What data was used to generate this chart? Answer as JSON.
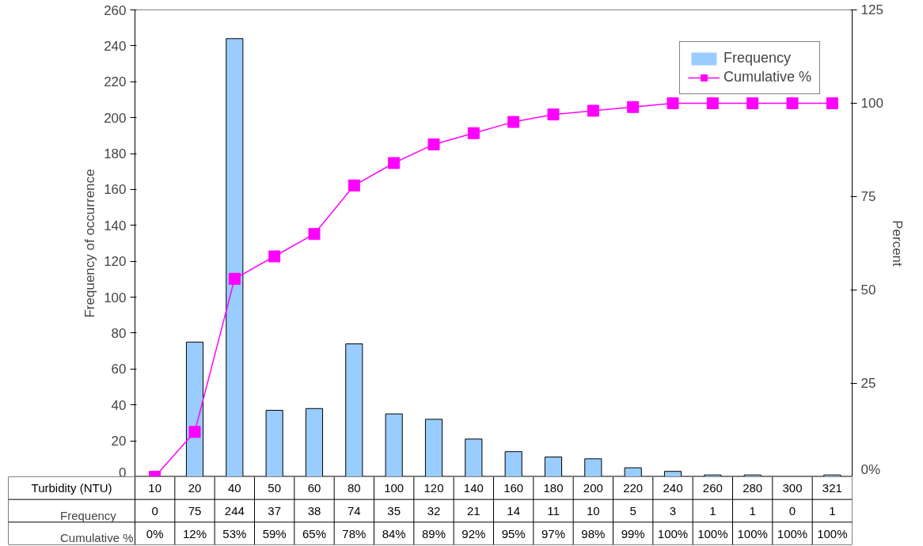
{
  "chart_data": {
    "type": "bar",
    "xlabel": "Turbidity (NTU)",
    "ylabel": "Frequency of occurrence",
    "y2label": "Percent",
    "categories": [
      "10",
      "20",
      "40",
      "50",
      "60",
      "80",
      "100",
      "120",
      "140",
      "160",
      "180",
      "200",
      "220",
      "240",
      "260",
      "280",
      "300",
      "321"
    ],
    "series": [
      {
        "name": "Frequency",
        "color": "#99ccff",
        "values": [
          0,
          75,
          244,
          37,
          38,
          74,
          35,
          32,
          21,
          14,
          11,
          10,
          5,
          3,
          1,
          1,
          0,
          1
        ],
        "value_labels": [
          "0",
          "75",
          "244",
          "37",
          "38",
          "74",
          "35",
          "32",
          "21",
          "14",
          "11",
          "10",
          "5",
          "3",
          "1",
          "1",
          "0",
          "1"
        ]
      },
      {
        "name": "Cumulative %",
        "type": "line",
        "axis": "y2",
        "marker": "square",
        "color": "#ff00ff",
        "values": [
          0,
          12,
          53,
          59,
          65,
          78,
          84,
          89,
          92,
          95,
          97,
          98,
          99,
          100,
          100,
          100,
          100,
          100
        ],
        "value_labels": [
          "0%",
          "12%",
          "53%",
          "59%",
          "65%",
          "78%",
          "84%",
          "89%",
          "92%",
          "95%",
          "97%",
          "98%",
          "99%",
          "100%",
          "100%",
          "100%",
          "100%",
          "100%"
        ]
      }
    ],
    "ylim": [
      0,
      260
    ],
    "yticks": [
      0,
      20,
      40,
      60,
      80,
      100,
      120,
      140,
      160,
      180,
      200,
      220,
      240,
      260
    ],
    "y2lim": [
      0,
      125
    ],
    "y2ticks": [
      {
        "value": 0,
        "label": "0%"
      },
      25,
      50,
      75,
      100,
      125
    ],
    "legend": "top right"
  }
}
